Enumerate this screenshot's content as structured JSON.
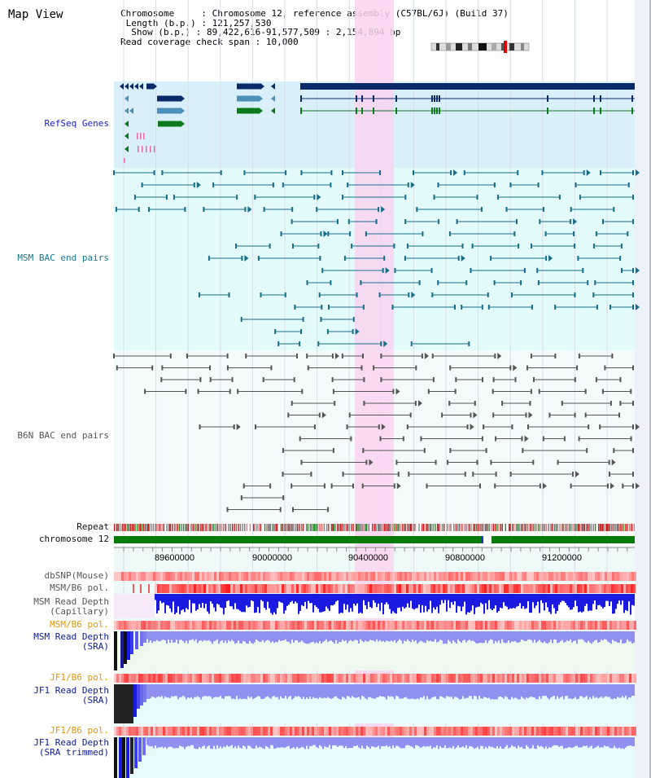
{
  "title": "Map View",
  "header": {
    "chromosome_label": "Chromosome",
    "chromosome_value": "Chromosome 12, reference assembly (C57BL/6J) (Build 37)",
    "length_label": "Length (b.p.)",
    "length_value": "121,257,530",
    "show_label": "Show (b.p.)",
    "show_value": "89,422,616-91,577,509 : 2,154,894 bp",
    "coverage_label": "Read coverage check span",
    "coverage_value": "10,000"
  },
  "tracks": {
    "refseq": "RefSeq Genes",
    "msm_bac": "MSM BAC end pairs",
    "b6n_bac": "B6N BAC end pairs",
    "repeat": "Repeat",
    "chromosome": "chromosome 12",
    "dbsnp": "dbSNP(Mouse)",
    "msm_b6_pol": "MSM/B6 pol.",
    "msm_depth_cap_1": "MSM Read Depth",
    "msm_depth_cap_2": "(Capillary)",
    "msm_b6_pol_2": "MSM/B6 pol.",
    "msm_depth_sra_1": "MSM Read Depth",
    "msm_depth_sra_2": "(SRA)",
    "jf1_b6_pol": "JF1/B6 pol.",
    "jf1_depth_sra_1": "JF1 Read Depth",
    "jf1_depth_sra_2": "(SRA)",
    "jf1_b6_pol_2": "JF1/B6 pol.",
    "jf1_depth_trim_1": "JF1 Read Depth",
    "jf1_depth_trim_2": "(SRA trimmed)"
  },
  "axis": {
    "ticks": [
      "89600000",
      "90000000",
      "90400000",
      "90800000",
      "91200000"
    ]
  },
  "colors": {
    "refseq_bg": "#d9f0fb",
    "msm_bg": "#e3fbfb",
    "b6n_bg": "#f3fbfb",
    "highlight": "#f9d4f0",
    "navy_gene": "#0a2a6a",
    "light_gene": "#4a90b8",
    "green_gene": "#0a7a1a",
    "msm_pair": "#146e8c",
    "b6n_pair": "#555555",
    "chromosome_bar": "#0a7a0a",
    "depth_blue": "#1a1ae0",
    "depth_lilac": "#9090f0"
  }
}
